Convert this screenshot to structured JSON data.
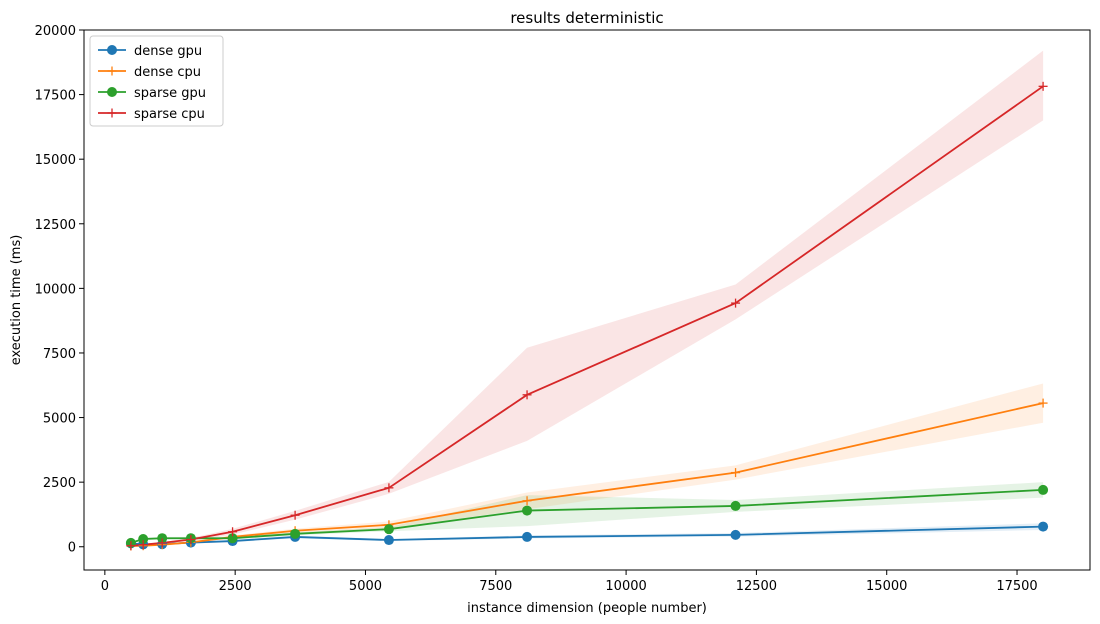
{
  "chart_data": {
    "type": "line",
    "title": "results deterministic",
    "xlabel": "instance dimension (people number)",
    "ylabel": "execution time (ms)",
    "xlim": [
      -400,
      18900
    ],
    "ylim": [
      -900,
      20000
    ],
    "xticks": [
      0,
      2500,
      5000,
      7500,
      10000,
      12500,
      15000,
      17500
    ],
    "yticks": [
      0,
      2500,
      5000,
      7500,
      10000,
      12500,
      15000,
      17500,
      20000
    ],
    "grid": false,
    "legend_position": "upper-left",
    "series": [
      {
        "name": "dense gpu",
        "color": "#1f77b4",
        "marker": "circle",
        "x": [
          500,
          735,
          1100,
          1650,
          2450,
          3650,
          5450,
          8100,
          12100,
          18000
        ],
        "y": [
          130,
          90,
          100,
          160,
          220,
          380,
          260,
          380,
          460,
          780
        ],
        "band_low": [
          90,
          60,
          70,
          120,
          180,
          330,
          220,
          320,
          390,
          650
        ],
        "band_high": [
          170,
          120,
          130,
          200,
          260,
          430,
          300,
          440,
          530,
          910
        ]
      },
      {
        "name": "dense cpu",
        "color": "#ff7f0e",
        "marker": "plus",
        "x": [
          500,
          735,
          1100,
          1650,
          2450,
          3650,
          5450,
          8100,
          12100,
          18000
        ],
        "y": [
          30,
          40,
          80,
          170,
          380,
          620,
          850,
          1780,
          2870,
          5560
        ],
        "band_low": [
          20,
          30,
          60,
          130,
          320,
          540,
          720,
          1450,
          2600,
          4800
        ],
        "band_high": [
          40,
          50,
          100,
          210,
          440,
          700,
          980,
          2100,
          3150,
          6320
        ]
      },
      {
        "name": "sparse gpu",
        "color": "#2ca02c",
        "marker": "circle",
        "x": [
          500,
          735,
          1100,
          1650,
          2450,
          3650,
          5450,
          8100,
          12100,
          18000
        ],
        "y": [
          150,
          300,
          330,
          330,
          330,
          500,
          680,
          1400,
          1580,
          2200
        ],
        "band_low": [
          120,
          250,
          280,
          280,
          280,
          440,
          600,
          800,
          1350,
          1900
        ],
        "band_high": [
          180,
          350,
          380,
          380,
          380,
          560,
          760,
          2000,
          1810,
          2500
        ]
      },
      {
        "name": "sparse cpu",
        "color": "#d62728",
        "marker": "plus",
        "x": [
          500,
          735,
          1100,
          1650,
          2450,
          3650,
          5450,
          8100,
          12100,
          18000
        ],
        "y": [
          40,
          80,
          150,
          280,
          580,
          1220,
          2280,
          5880,
          9430,
          17820
        ],
        "band_low": [
          30,
          60,
          120,
          220,
          470,
          1050,
          2050,
          4100,
          8800,
          16500
        ],
        "band_high": [
          50,
          100,
          180,
          340,
          690,
          1390,
          2510,
          7700,
          10150,
          19200
        ]
      }
    ]
  }
}
